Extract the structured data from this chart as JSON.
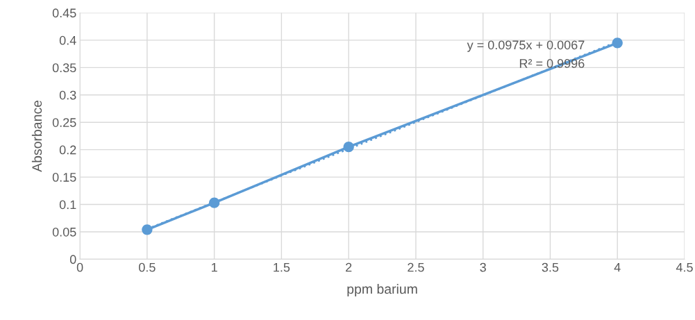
{
  "chart_data": {
    "type": "line",
    "xlabel": "ppm barium",
    "ylabel": "Absorbance",
    "xlim": [
      0,
      4.5
    ],
    "xticks": [
      0,
      0.5,
      1,
      1.5,
      2,
      2.5,
      3,
      3.5,
      4,
      4.5
    ],
    "ylim": [
      0,
      0.45
    ],
    "yticks": [
      0,
      0.05,
      0.1,
      0.15,
      0.2,
      0.25,
      0.3,
      0.35,
      0.4,
      0.45
    ],
    "grid": true,
    "series": [
      {
        "color": "#5b9bd5",
        "x": [
          0.5,
          1,
          2,
          4
        ],
        "values": [
          0.054,
          0.103,
          0.205,
          0.395
        ],
        "marker": "circle",
        "line_style": "solid"
      },
      {
        "color": "#5b9bd5",
        "x": [
          0.5,
          4
        ],
        "values": [
          0.055,
          0.397
        ],
        "marker": "none",
        "line_style": "dotted"
      }
    ],
    "annotations": [
      "y = 0.0975x + 0.0067",
      "R² = 0.9996"
    ]
  }
}
